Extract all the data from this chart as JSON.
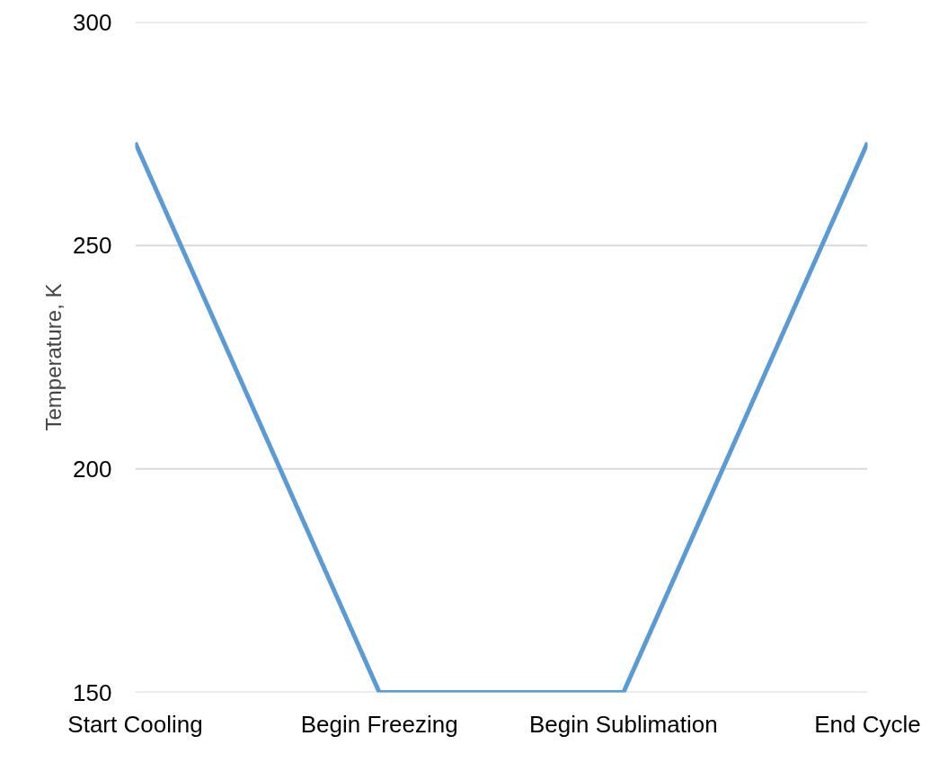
{
  "chart_data": {
    "type": "line",
    "ylabel": "Temperature, K",
    "categories": [
      "Start Cooling",
      "Begin Freezing",
      "Begin Sublimation",
      "End Cycle"
    ],
    "series": [
      {
        "color": "#5b9bd5",
        "values": [
          273,
          150,
          150,
          273
        ]
      }
    ],
    "ylim": [
      150,
      300
    ],
    "yticks": [
      150,
      200,
      250,
      300
    ],
    "grid": "y",
    "marker": "none",
    "line_style": "solid"
  }
}
